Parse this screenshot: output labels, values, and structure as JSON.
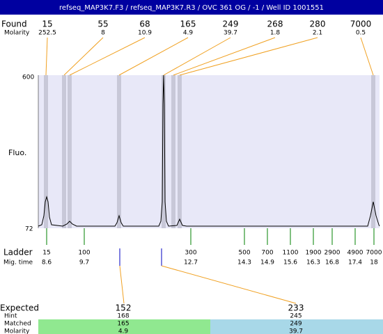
{
  "title": "refseq_MAP3K7.F3 / refseq_MAP3K7.R3 / OVC 361 OG / -1 / Well ID 1001551",
  "found": {
    "label": "Found",
    "molarity_label": "Molarity",
    "peaks": [
      {
        "size": 15,
        "molarity": 252.5
      },
      {
        "size": 55,
        "molarity": 8
      },
      {
        "size": 68,
        "molarity": 10.9
      },
      {
        "size": 165,
        "molarity": 4.9
      },
      {
        "size": 249,
        "molarity": 39.7
      },
      {
        "size": 268,
        "molarity": 1.8
      },
      {
        "size": 280,
        "molarity": 2.1
      },
      {
        "size": 7000,
        "molarity": 0.5
      }
    ]
  },
  "axis": {
    "label": "Fluo.",
    "top": 600,
    "bottom": 72
  },
  "ladder": {
    "label": "Ladder",
    "time_label": "Mig. time",
    "items": [
      {
        "size": 15,
        "time": 8.6
      },
      {
        "size": 100,
        "time": 9.7
      },
      {
        "size": 300,
        "time": 12.7
      },
      {
        "size": 500,
        "time": 14.3
      },
      {
        "size": 700,
        "time": 14.9
      },
      {
        "size": 1100,
        "time": 15.6
      },
      {
        "size": 1900,
        "time": 16.3
      },
      {
        "size": 2900,
        "time": 16.8
      },
      {
        "size": 4900,
        "time": 17.4
      },
      {
        "size": 7000,
        "time": 18
      }
    ]
  },
  "expected": {
    "labels": [
      "Expected",
      "Hint",
      "Matched",
      "Molarity"
    ],
    "columns": [
      {
        "expected": 152,
        "hint": 168,
        "matched": 165,
        "molarity": 4.9
      },
      {
        "expected": 233,
        "hint": 245,
        "matched": 249,
        "molarity": 39.7
      }
    ]
  }
}
